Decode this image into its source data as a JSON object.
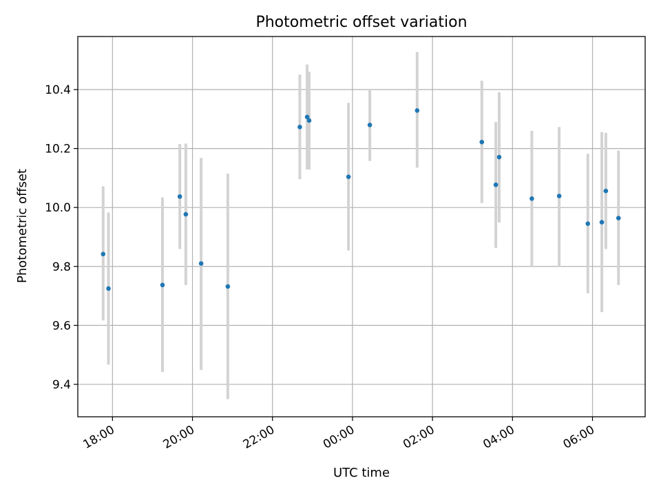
{
  "chart_data": {
    "type": "scatter",
    "title": "Photometric offset variation",
    "xlabel": "UTC time",
    "ylabel": "Photometric offset",
    "x_axis_kind": "time",
    "x_start": "17:08",
    "x_end": "07:19",
    "xlim": [
      "17:08",
      "07:19"
    ],
    "ylim": [
      9.29,
      10.58
    ],
    "xticks": [
      "18:00",
      "20:00",
      "22:00",
      "00:00",
      "02:00",
      "04:00",
      "06:00"
    ],
    "yticks": [
      9.4,
      9.6,
      9.8,
      10.0,
      10.2,
      10.4
    ],
    "ytick_labels": [
      "9.4",
      "9.6",
      "9.8",
      "10.0",
      "10.2",
      "10.4"
    ],
    "grid": true,
    "x_tick_rotation": "30 degrees",
    "series": [
      {
        "marker_color": "#1f77b4",
        "errorbar_color": "#d3d3d3",
        "points": [
          {
            "x": "17:46",
            "y": 9.842,
            "ylow": 9.617,
            "yhigh": 10.072
          },
          {
            "x": "17:54",
            "y": 9.725,
            "ylow": 9.467,
            "yhigh": 9.983
          },
          {
            "x": "19:15",
            "y": 9.737,
            "ylow": 9.442,
            "yhigh": 10.034
          },
          {
            "x": "19:41",
            "y": 10.037,
            "ylow": 9.859,
            "yhigh": 10.215
          },
          {
            "x": "19:50",
            "y": 9.977,
            "ylow": 9.737,
            "yhigh": 10.217
          },
          {
            "x": "20:13",
            "y": 9.81,
            "ylow": 9.449,
            "yhigh": 10.168
          },
          {
            "x": "20:53",
            "y": 9.732,
            "ylow": 9.35,
            "yhigh": 10.115
          },
          {
            "x": "22:41",
            "y": 10.273,
            "ylow": 10.096,
            "yhigh": 10.451
          },
          {
            "x": "22:52",
            "y": 10.307,
            "ylow": 10.129,
            "yhigh": 10.485
          },
          {
            "x": "22:55",
            "y": 10.295,
            "ylow": 10.129,
            "yhigh": 10.46
          },
          {
            "x": "23:54",
            "y": 10.104,
            "ylow": 9.854,
            "yhigh": 10.355
          },
          {
            "x": "00:26",
            "y": 10.28,
            "ylow": 10.158,
            "yhigh": 10.4
          },
          {
            "x": "01:37",
            "y": 10.329,
            "ylow": 10.135,
            "yhigh": 10.527
          },
          {
            "x": "03:14",
            "y": 10.222,
            "ylow": 10.015,
            "yhigh": 10.43
          },
          {
            "x": "03:35",
            "y": 10.077,
            "ylow": 9.863,
            "yhigh": 10.29
          },
          {
            "x": "03:40",
            "y": 10.171,
            "ylow": 9.949,
            "yhigh": 10.391
          },
          {
            "x": "04:29",
            "y": 10.03,
            "ylow": 9.8,
            "yhigh": 10.26
          },
          {
            "x": "05:10",
            "y": 10.039,
            "ylow": 9.8,
            "yhigh": 10.273
          },
          {
            "x": "05:53",
            "y": 9.945,
            "ylow": 9.709,
            "yhigh": 10.182
          },
          {
            "x": "06:14",
            "y": 9.95,
            "ylow": 9.645,
            "yhigh": 10.256
          },
          {
            "x": "06:20",
            "y": 10.056,
            "ylow": 9.859,
            "yhigh": 10.253
          },
          {
            "x": "06:39",
            "y": 9.964,
            "ylow": 9.737,
            "yhigh": 10.193
          }
        ]
      }
    ]
  },
  "colors": {
    "marker": "#1f77b4",
    "errorbar": "#d3d3d3",
    "grid": "#b0b0b0",
    "axes": "#000000",
    "background": "#ffffff"
  }
}
